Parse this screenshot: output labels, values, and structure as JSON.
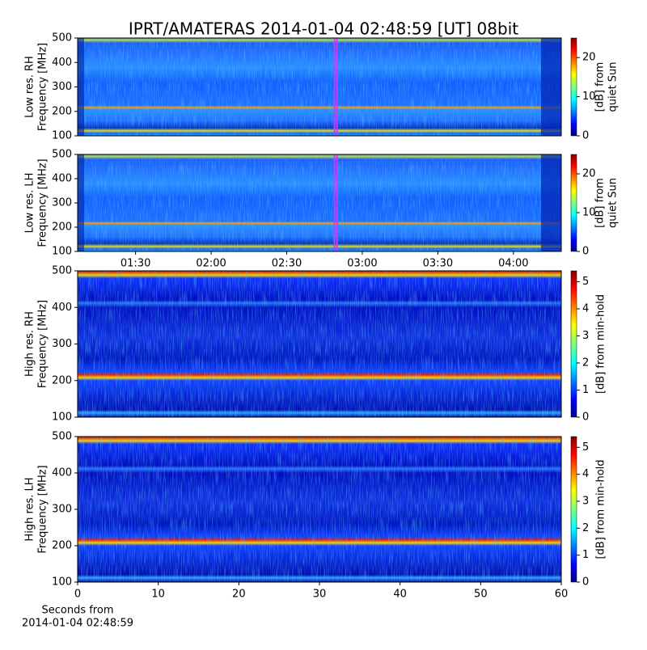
{
  "title": "IPRT/AMATERAS 2014-01-04 02:48:59 [UT]   08bit",
  "chart_data": [
    {
      "type": "spectrogram",
      "ylabel": [
        "Low res. RH",
        "Frequency [MHz]"
      ],
      "ylim": [
        100,
        500
      ],
      "yticks": [
        100,
        200,
        300,
        400,
        500
      ],
      "xlim": [
        "01:07",
        "04:19"
      ],
      "highlight": [
        "02:48:59",
        "02:49:59"
      ],
      "clabel": [
        "[dB] from",
        "quiet Sun"
      ],
      "clim": [
        0,
        25
      ],
      "cticks": [
        0,
        10,
        20
      ]
    },
    {
      "type": "spectrogram",
      "ylabel": [
        "Low res. LH",
        "Frequency [MHz]"
      ],
      "ylim": [
        100,
        500
      ],
      "yticks": [
        100,
        200,
        300,
        400,
        500
      ],
      "xlim": [
        "01:07",
        "04:19"
      ],
      "xticks": [
        "01:30",
        "02:00",
        "02:30",
        "03:00",
        "03:30",
        "04:00"
      ],
      "highlight": [
        "02:48:59",
        "02:49:59"
      ],
      "clabel": [
        "[dB] from",
        "quiet Sun"
      ],
      "clim": [
        0,
        25
      ],
      "cticks": [
        0,
        10,
        20
      ]
    },
    {
      "type": "spectrogram",
      "ylabel": [
        "High res. RH",
        "Frequency [MHz]"
      ],
      "ylim": [
        100,
        500
      ],
      "yticks": [
        100,
        200,
        300,
        400,
        500
      ],
      "xlim": [
        0,
        60
      ],
      "clabel": [
        "[dB] from min-hold"
      ],
      "clim": [
        0,
        5.4
      ],
      "cticks": [
        0,
        1,
        2,
        3,
        4,
        5
      ]
    },
    {
      "type": "spectrogram",
      "ylabel": [
        "High res. LH",
        "Frequency [MHz]"
      ],
      "ylim": [
        100,
        500
      ],
      "yticks": [
        100,
        200,
        300,
        400,
        500
      ],
      "xlim": [
        0,
        60
      ],
      "xticks": [
        0,
        10,
        20,
        30,
        40,
        50,
        60
      ],
      "xlabel": [
        "Seconds from",
        "2014-01-04 02:48:59"
      ],
      "clabel": [
        "[dB] from min-hold"
      ],
      "clim": [
        0,
        5.4
      ],
      "cticks": [
        0,
        1,
        2,
        3,
        4,
        5
      ]
    }
  ]
}
